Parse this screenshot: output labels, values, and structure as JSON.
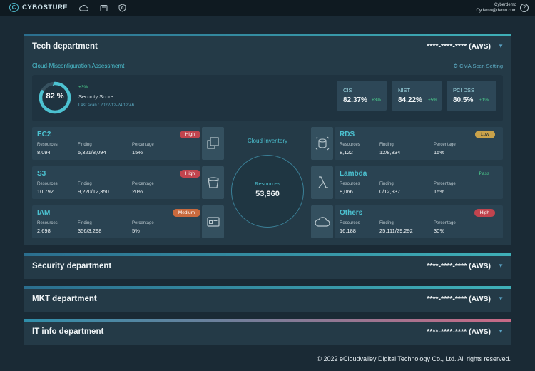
{
  "topbar": {
    "logo_mark": "C",
    "logo_text": "CYBOSTURE",
    "nav_icons": [
      "cloud-icon",
      "document-icon",
      "shield-icon"
    ],
    "user_name": "Cyberdemo",
    "user_email": "Cydemo@demo.com",
    "help": "?"
  },
  "tech": {
    "title": "Tech department",
    "account": "****-****-**** (AWS)",
    "cma_title": "Cloud-Misconfiguration Assessmemt",
    "cma_setting": "CMA Scan Setting",
    "score": {
      "value_text": "82 %",
      "value": 82,
      "increase": "+3%",
      "label": "Security Score",
      "last_scan": "Last scan : 2022-12-24   12:46"
    },
    "benchmarks": [
      {
        "name": "CIS",
        "value": "82.37%",
        "delta": "+3%"
      },
      {
        "name": "NIST",
        "value": "84.22%",
        "delta": "+5%"
      },
      {
        "name": "PCI DSS",
        "value": "80.5%",
        "delta": "+1%"
      }
    ],
    "labels": {
      "resources": "Resources",
      "finding": "Finding",
      "percentage": "Percentage"
    },
    "inventory": {
      "title": "Cloud Inventory",
      "label": "Resources",
      "value": "53,960"
    },
    "services_left": [
      {
        "name": "EC2",
        "badge": "High",
        "level": "high",
        "resources": "8,094",
        "finding": "5,321/8,094",
        "percentage": "15%",
        "icon": "chip-icon"
      },
      {
        "name": "S3",
        "badge": "High",
        "level": "high",
        "resources": "10,792",
        "finding": "9,220/12,350",
        "percentage": "20%",
        "icon": "bucket-icon"
      },
      {
        "name": "IAM",
        "badge": "Medium",
        "level": "medium",
        "resources": "2,698",
        "finding": "356/3,298",
        "percentage": "5%",
        "icon": "id-card-icon"
      }
    ],
    "services_right": [
      {
        "name": "RDS",
        "badge": "Low",
        "level": "low",
        "resources": "8,122",
        "finding": "12/8,834",
        "percentage": "15%",
        "icon": "database-icon"
      },
      {
        "name": "Lambda",
        "badge": "Pass",
        "level": "pass",
        "resources": "8,066",
        "finding": "0/12,937",
        "percentage": "15%",
        "icon": "lambda-icon"
      },
      {
        "name": "Others",
        "badge": "High",
        "level": "high",
        "resources": "16,188",
        "finding": "25,111/29,292",
        "percentage": "30%",
        "icon": "cloud-icon"
      }
    ]
  },
  "departments": [
    {
      "title": "Security department",
      "account": "****-****-**** (AWS)"
    },
    {
      "title": "MKT department",
      "account": "****-****-**** (AWS)"
    },
    {
      "title": "IT info department",
      "account": "****-****-**** (AWS)"
    }
  ],
  "footer": "© 2022 eCloudvalley Digital Technology Co., Ltd. All rights reserved.",
  "colors": {
    "accent": "#4cc2d1",
    "high": "#c1444e",
    "medium": "#c96a3e",
    "low": "#c9a24a",
    "pass": "#4cd18e"
  }
}
